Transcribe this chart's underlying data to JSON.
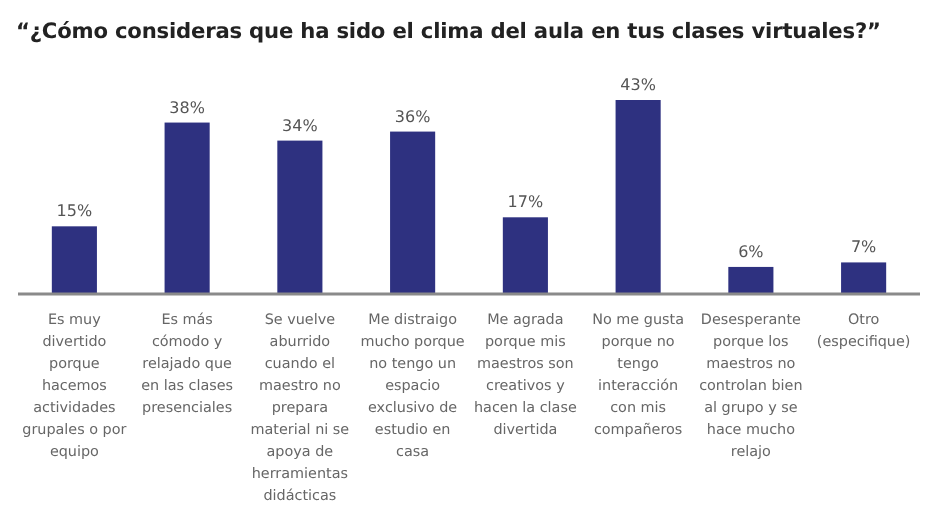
{
  "chart_data": {
    "type": "bar",
    "title": "“¿Cómo consideras que ha sido el clima del aula en tus clases virtuales?”",
    "categories": [
      "Es muy divertido porque hacemos actividades grupales o por equipo",
      "Es más cómodo y relajado que en las clases presenciales",
      "Se vuelve aburrido cuando el maestro no prepara material ni se apoya de herramientas didácticas",
      "Me distraigo mucho porque no tengo un espacio exclusivo de estudio en casa",
      "Me agrada porque mis maestros son creativos y hacen la clase divertida",
      "No me gusta porque no tengo interacción con mis compañeros",
      "Desesperante porque los maestros no controlan bien al grupo y se hace mucho relajo",
      "Otro (especifique)"
    ],
    "values": [
      15,
      38,
      34,
      36,
      17,
      43,
      6,
      7
    ],
    "value_labels": [
      "15%",
      "38%",
      "34%",
      "36%",
      "17%",
      "43%",
      "6%",
      "7%"
    ],
    "color": "#2e3180"
  }
}
